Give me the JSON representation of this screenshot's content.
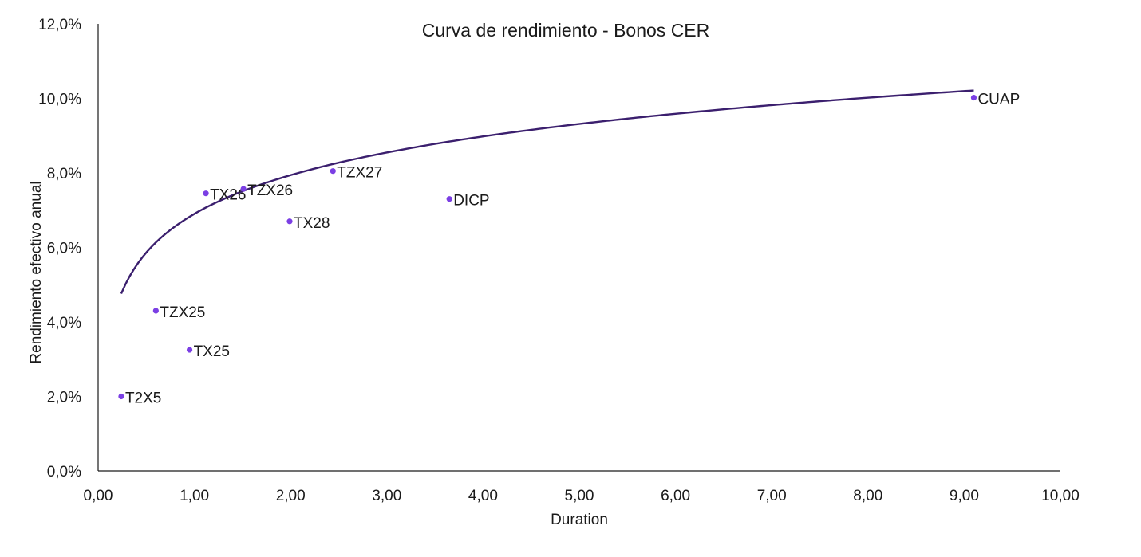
{
  "chart_data": {
    "type": "scatter",
    "title": "Curva de rendimiento - Bonos CER",
    "xlabel": "Duration",
    "ylabel": "Rendimiento efectivo anual",
    "xlim": [
      0,
      10
    ],
    "ylim": [
      0,
      12
    ],
    "x_ticks": [
      0,
      1,
      2,
      3,
      4,
      5,
      6,
      7,
      8,
      9,
      10
    ],
    "x_tick_labels": [
      "0,00",
      "1,00",
      "2,00",
      "3,00",
      "4,00",
      "5,00",
      "6,00",
      "7,00",
      "8,00",
      "9,00",
      "10,00"
    ],
    "y_ticks": [
      0,
      2,
      4,
      6,
      8,
      10,
      12
    ],
    "y_tick_labels": [
      "0,0%",
      "2,0%",
      "4,0%",
      "6,0%",
      "8,0%",
      "10,0%",
      "12,0%"
    ],
    "grid": false,
    "legend": "none",
    "points": [
      {
        "label": "T2X5",
        "x": 0.24,
        "y": 2.0
      },
      {
        "label": "TZX25",
        "x": 0.6,
        "y": 4.3
      },
      {
        "label": "TX25",
        "x": 0.95,
        "y": 3.25
      },
      {
        "label": "TX26",
        "x": 1.12,
        "y": 7.45
      },
      {
        "label": "TZX26",
        "x": 1.51,
        "y": 7.57
      },
      {
        "label": "TX28",
        "x": 1.99,
        "y": 6.7
      },
      {
        "label": "TZX27",
        "x": 2.44,
        "y": 8.05
      },
      {
        "label": "DICP",
        "x": 3.65,
        "y": 7.3
      },
      {
        "label": "CUAP",
        "x": 9.1,
        "y": 10.02
      }
    ],
    "trendline": {
      "type": "logarithmic",
      "x_range": [
        0.24,
        9.1
      ],
      "a": 6.9,
      "b": 1.5
    },
    "colors": {
      "point": "#7b3fe4",
      "trendline": "#3b1f6e",
      "axis": "#1a1a1a"
    }
  }
}
